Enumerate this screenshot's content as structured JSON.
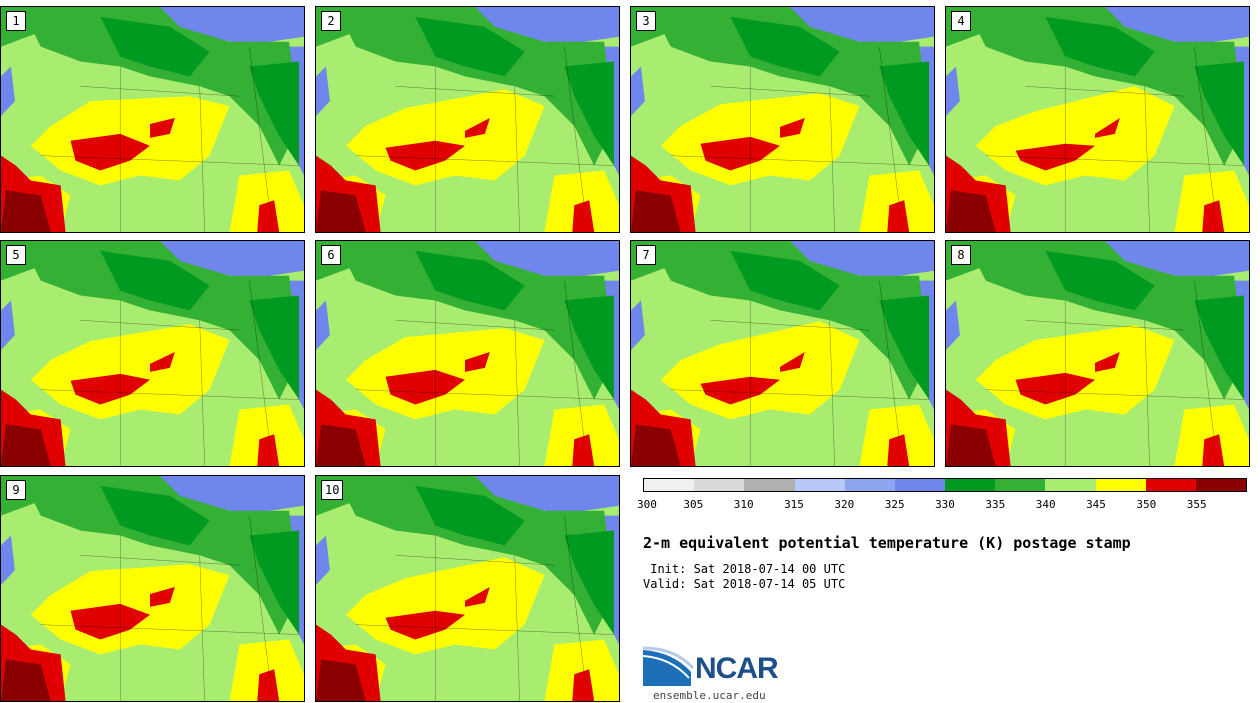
{
  "panels": [
    {
      "label": "1"
    },
    {
      "label": "2"
    },
    {
      "label": "3"
    },
    {
      "label": "4"
    },
    {
      "label": "5"
    },
    {
      "label": "6"
    },
    {
      "label": "7"
    },
    {
      "label": "8"
    },
    {
      "label": "9"
    },
    {
      "label": "10"
    }
  ],
  "colorbar": {
    "colors": [
      "#f0f0f0",
      "#dadada",
      "#b0b0b0",
      "#b8c8f8",
      "#8ca6f0",
      "#6f86ec",
      "#009a20",
      "#34b034",
      "#a8ec70",
      "#ffff00",
      "#e00000",
      "#8a0000"
    ],
    "tick_labels": [
      "300",
      "305",
      "310",
      "315",
      "320",
      "325",
      "330",
      "335",
      "340",
      "345",
      "350",
      "355"
    ]
  },
  "title": "2-m equivalent potential temperature (K) postage stamp",
  "init": " Init: Sat 2018-07-14 00 UTC",
  "valid": "Valid: Sat 2018-07-14 05 UTC",
  "logo": {
    "text": "NCAR",
    "url_text": "ensemble.ucar.edu"
  }
}
